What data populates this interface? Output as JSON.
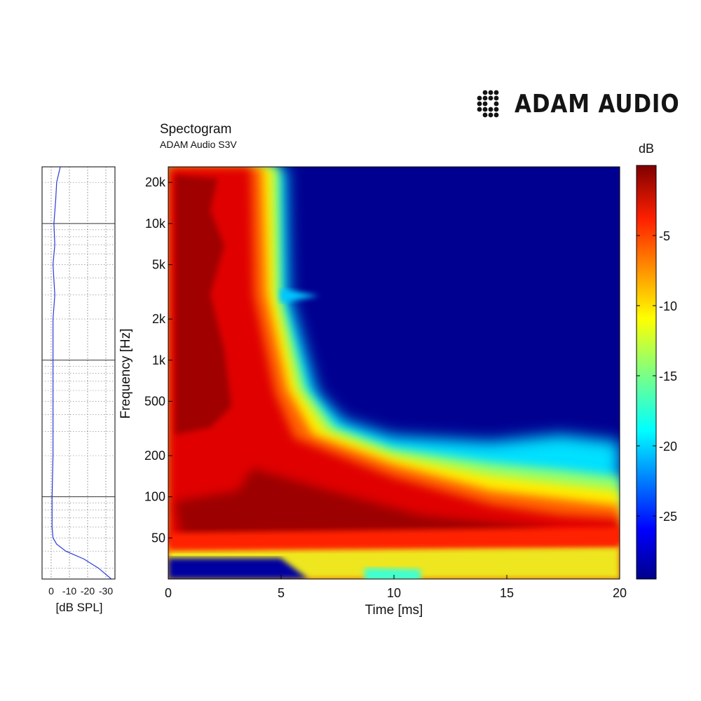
{
  "brand": {
    "name": "ADAM AUDIO",
    "logo_icon": "dot-grid-logo-icon"
  },
  "chart_data": [
    {
      "type": "heatmap",
      "title": "Spectogram",
      "subtitle": "ADAM Audio S3V",
      "xlabel": "Time [ms]",
      "ylabel": "Frequency [Hz]",
      "xlim": [
        0,
        20
      ],
      "ylim": [
        25,
        26000
      ],
      "yscale": "log",
      "xticks": [
        0,
        5,
        10,
        15,
        20
      ],
      "xtick_labels": [
        "0",
        "5",
        "10",
        "15",
        "20"
      ],
      "yticks": [
        50,
        100,
        200,
        500,
        1000,
        2000,
        5000,
        10000,
        20000
      ],
      "ytick_labels": [
        "50",
        "100",
        "200",
        "500",
        "1k",
        "2k",
        "5k",
        "10k",
        "20k"
      ],
      "grid": false,
      "colorbar": {
        "label": "dB",
        "range": [
          -29.5,
          0
        ],
        "ticks": [
          -5,
          -10,
          -15,
          -20,
          -25
        ],
        "tick_labels": [
          "-5",
          "-10",
          "-15",
          "-20",
          "-25"
        ],
        "colormap": "jet"
      },
      "decay_contour": {
        "frequency_hz": [
          20000,
          10000,
          7000,
          5000,
          3000,
          2000,
          1500,
          1000,
          700,
          500,
          400,
          300,
          250,
          200,
          150,
          100,
          70,
          50,
          43,
          35,
          30
        ],
        "time_ms_to_minus_29db": [
          4.9,
          5.0,
          5.1,
          5.2,
          6.5,
          5.4,
          5.6,
          5.8,
          6.0,
          7.0,
          8.5,
          10.5,
          14.0,
          19.0,
          20,
          20,
          20,
          20,
          20,
          20,
          20
        ]
      }
    },
    {
      "type": "line",
      "title": "",
      "xlabel": "[dB SPL]",
      "ylabel": "",
      "xlim": [
        5,
        -35
      ],
      "xticks": [
        0,
        -10,
        -20,
        -30
      ],
      "xtick_labels": [
        "0",
        "-10",
        "-20",
        "-30"
      ],
      "ylim": [
        25,
        26000
      ],
      "yscale": "log",
      "grid": true,
      "series": [
        {
          "color": "#2a3cd6",
          "frequency_hz": [
            26000,
            20000,
            15000,
            10000,
            7000,
            5000,
            3000,
            2000,
            1000,
            500,
            200,
            100,
            60,
            50,
            45,
            40,
            35,
            30,
            25
          ],
          "db": [
            -5,
            -3,
            -2.5,
            -1.5,
            -2,
            -1,
            -2,
            -1,
            -1,
            -1,
            -1,
            -0.5,
            -0.5,
            -1,
            -3,
            -8,
            -18,
            -26,
            -33
          ]
        }
      ]
    }
  ]
}
